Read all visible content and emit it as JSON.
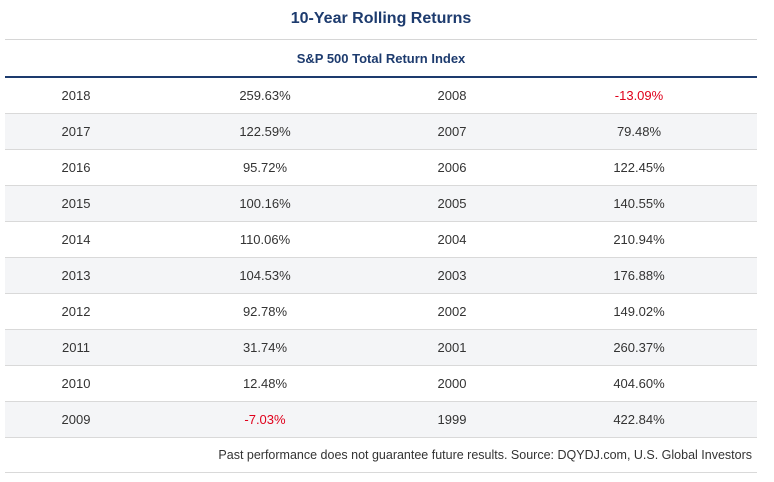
{
  "header": {
    "title": "10-Year Rolling Returns",
    "subtitle": "S&P 500 Total Return Index"
  },
  "table": {
    "rows": [
      [
        "2018",
        "259.63%",
        "2008",
        "-13.09%"
      ],
      [
        "2017",
        "122.59%",
        "2007",
        "79.48%"
      ],
      [
        "2016",
        "95.72%",
        "2006",
        "122.45%"
      ],
      [
        "2015",
        "100.16%",
        "2005",
        "140.55%"
      ],
      [
        "2014",
        "110.06%",
        "2004",
        "210.94%"
      ],
      [
        "2013",
        "104.53%",
        "2003",
        "176.88%"
      ],
      [
        "2012",
        "92.78%",
        "2002",
        "149.02%"
      ],
      [
        "2011",
        "31.74%",
        "2001",
        "260.37%"
      ],
      [
        "2010",
        "12.48%",
        "2000",
        "404.60%"
      ],
      [
        "2009",
        "-7.03%",
        "1999",
        "422.84%"
      ]
    ]
  },
  "footer": {
    "note": "Past performance does not guarantee future results. Source: DQYDJ.com, U.S. Global Investors"
  }
}
